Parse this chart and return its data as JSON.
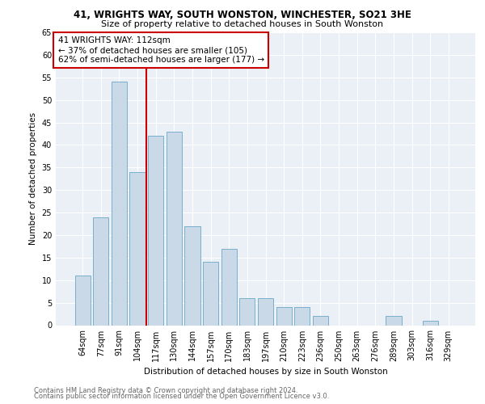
{
  "title1": "41, WRIGHTS WAY, SOUTH WONSTON, WINCHESTER, SO21 3HE",
  "title2": "Size of property relative to detached houses in South Wonston",
  "xlabel": "Distribution of detached houses by size in South Wonston",
  "ylabel": "Number of detached properties",
  "categories": [
    "64sqm",
    "77sqm",
    "91sqm",
    "104sqm",
    "117sqm",
    "130sqm",
    "144sqm",
    "157sqm",
    "170sqm",
    "183sqm",
    "197sqm",
    "210sqm",
    "223sqm",
    "236sqm",
    "250sqm",
    "263sqm",
    "276sqm",
    "289sqm",
    "303sqm",
    "316sqm",
    "329sqm"
  ],
  "values": [
    11,
    24,
    54,
    34,
    42,
    43,
    22,
    14,
    17,
    6,
    6,
    4,
    4,
    2,
    0,
    0,
    0,
    2,
    0,
    1,
    0
  ],
  "bar_color": "#c9d9e8",
  "bar_edge_color": "#7ab0cc",
  "vline_color": "#cc0000",
  "annotation_title": "41 WRIGHTS WAY: 112sqm",
  "annotation_line2": "← 37% of detached houses are smaller (105)",
  "annotation_line3": "62% of semi-detached houses are larger (177) →",
  "annotation_box_color": "#cc0000",
  "footer1": "Contains HM Land Registry data © Crown copyright and database right 2024.",
  "footer2": "Contains public sector information licensed under the Open Government Licence v3.0.",
  "ylim": [
    0,
    65
  ],
  "yticks": [
    0,
    5,
    10,
    15,
    20,
    25,
    30,
    35,
    40,
    45,
    50,
    55,
    60,
    65
  ],
  "bg_color": "#eaf0f6",
  "title1_fontsize": 8.5,
  "title2_fontsize": 8.0,
  "xlabel_fontsize": 7.5,
  "ylabel_fontsize": 7.5,
  "tick_fontsize": 7.0,
  "annotation_fontsize": 7.5,
  "footer_fontsize": 6.0
}
